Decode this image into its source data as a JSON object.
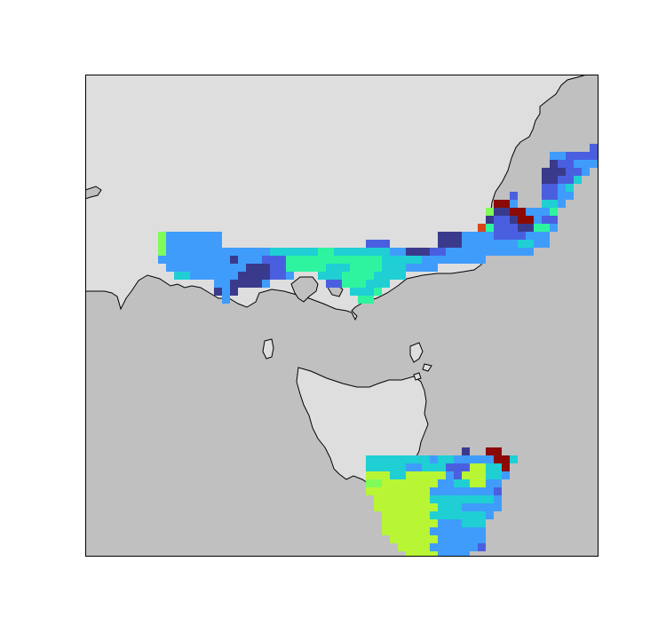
{
  "map": {
    "ocean_color": "#c0c0c0",
    "land_color": "#dedede",
    "coastline_color": "#000000",
    "frame_color": "#000000"
  },
  "categories": [
    {
      "key": "a",
      "color": "#3a3a8c"
    },
    {
      "key": "b",
      "color": "#4a5fe0"
    },
    {
      "key": "c",
      "color": "#3f9cfb"
    },
    {
      "key": "d",
      "color": "#1fcfd4"
    },
    {
      "key": "e",
      "color": "#2ef4a0"
    },
    {
      "key": "f",
      "color": "#7ffc5a"
    },
    {
      "key": "g",
      "color": "#b8f535"
    },
    {
      "key": "h",
      "color": "#e6e22d"
    },
    {
      "key": "i",
      "color": "#d9451a"
    },
    {
      "key": "j",
      "color": "#8b0a05"
    }
  ]
}
